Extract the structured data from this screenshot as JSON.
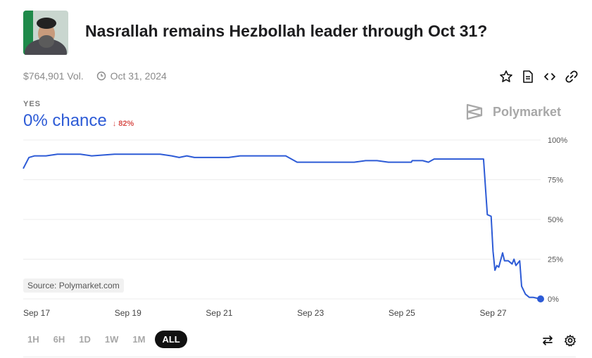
{
  "market": {
    "title": "Nasrallah remains Hezbollah leader through Oct 31?",
    "volume": "$764,901 Vol.",
    "end_date": "Oct 31, 2024",
    "outcome_label": "YES",
    "chance": "0% chance",
    "change": "↓ 82%",
    "brand": "Polymarket",
    "source": "Source: Polymarket.com"
  },
  "icons": [
    "star-icon",
    "document-icon",
    "code-icon",
    "link-icon",
    "clock-icon",
    "swap-icon",
    "gear-icon"
  ],
  "colors": {
    "line": "#2d5bd6",
    "down": "#d9534f",
    "brand": "#a8a8a8"
  },
  "ranges": [
    {
      "label": "1H",
      "active": false
    },
    {
      "label": "6H",
      "active": false
    },
    {
      "label": "1D",
      "active": false
    },
    {
      "label": "1W",
      "active": false
    },
    {
      "label": "1M",
      "active": false
    },
    {
      "label": "ALL",
      "active": true
    }
  ],
  "chart_data": {
    "type": "line",
    "title": "",
    "xlabel": "",
    "ylabel": "",
    "x_ticks": [
      "Sep 17",
      "Sep 19",
      "Sep 21",
      "Sep 23",
      "Sep 25",
      "Sep 27"
    ],
    "y_ticks": [
      "100%",
      "75%",
      "50%",
      "25%",
      "0%"
    ],
    "ylim": [
      0,
      100
    ],
    "xlim": [
      "Sep 17",
      "Sep 28"
    ],
    "grid": true,
    "series": [
      {
        "values": [
          [
            "Sep 17 00:00",
            82
          ],
          [
            "Sep 17 03:00",
            89
          ],
          [
            "Sep 17 06:00",
            90
          ],
          [
            "Sep 17 12:00",
            90
          ],
          [
            "Sep 17 18:00",
            91
          ],
          [
            "Sep 18 00:00",
            91
          ],
          [
            "Sep 18 06:00",
            91
          ],
          [
            "Sep 18 12:00",
            90
          ],
          [
            "Sep 19 00:00",
            91
          ],
          [
            "Sep 19 12:00",
            91
          ],
          [
            "Sep 20 00:00",
            91
          ],
          [
            "Sep 20 06:00",
            90
          ],
          [
            "Sep 20 10:00",
            89
          ],
          [
            "Sep 20 14:00",
            90
          ],
          [
            "Sep 20 18:00",
            89
          ],
          [
            "Sep 21 00:00",
            89
          ],
          [
            "Sep 21 12:00",
            89
          ],
          [
            "Sep 21 18:00",
            90
          ],
          [
            "Sep 22 06:00",
            90
          ],
          [
            "Sep 22 18:00",
            90
          ],
          [
            "Sep 22 21:00",
            88
          ],
          [
            "Sep 23 00:00",
            86
          ],
          [
            "Sep 23 12:00",
            86
          ],
          [
            "Sep 24 00:00",
            86
          ],
          [
            "Sep 24 06:00",
            86
          ],
          [
            "Sep 24 12:00",
            87
          ],
          [
            "Sep 24 18:00",
            87
          ],
          [
            "Sep 25 00:00",
            86
          ],
          [
            "Sep 25 12:00",
            86
          ],
          [
            "Sep 25 12:30",
            87
          ],
          [
            "Sep 25 18:00",
            87
          ],
          [
            "Sep 25 21:00",
            86
          ],
          [
            "Sep 26 00:00",
            88
          ],
          [
            "Sep 26 12:00",
            88
          ],
          [
            "Sep 26 18:00",
            88
          ],
          [
            "Sep 26 21:00",
            88
          ],
          [
            "Sep 27 02:00",
            88
          ],
          [
            "Sep 27 04:00",
            53
          ],
          [
            "Sep 27 06:00",
            52
          ],
          [
            "Sep 27 07:00",
            30
          ],
          [
            "Sep 27 08:00",
            18
          ],
          [
            "Sep 27 09:00",
            21
          ],
          [
            "Sep 27 10:00",
            20
          ],
          [
            "Sep 27 12:00",
            29
          ],
          [
            "Sep 27 13:00",
            24
          ],
          [
            "Sep 27 15:00",
            24
          ],
          [
            "Sep 27 17:00",
            22
          ],
          [
            "Sep 27 18:00",
            25
          ],
          [
            "Sep 27 19:00",
            21
          ],
          [
            "Sep 27 21:00",
            24
          ],
          [
            "Sep 27 22:00",
            8
          ],
          [
            "Sep 28 00:00",
            3
          ],
          [
            "Sep 28 02:00",
            1
          ],
          [
            "Sep 28 04:00",
            1
          ],
          [
            "Sep 28 08:00",
            0
          ]
        ]
      }
    ]
  }
}
